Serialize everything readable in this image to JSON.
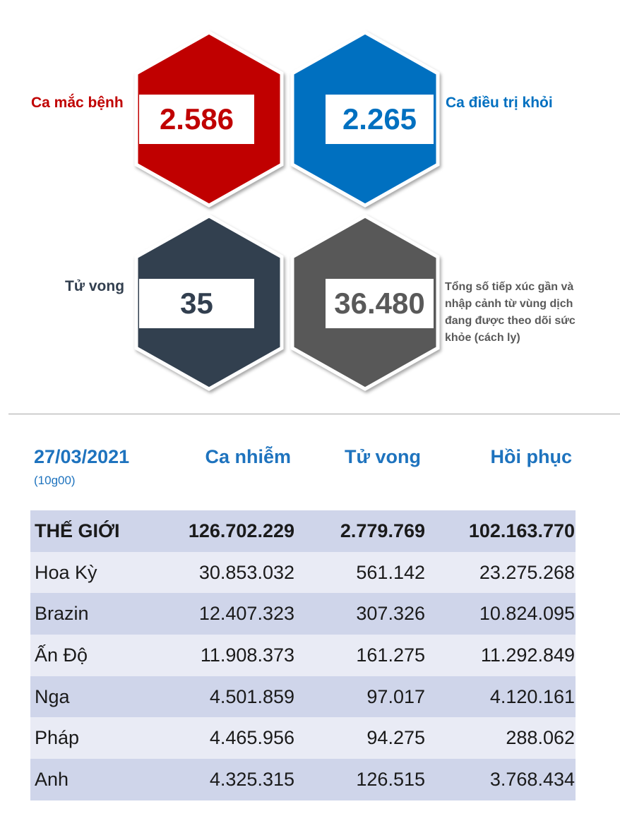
{
  "stats": {
    "cases": {
      "label": "Ca mắc bệnh",
      "value": "2.586",
      "color": "#c00000"
    },
    "recovered": {
      "label": "Ca điều trị khỏi",
      "value": "2.265",
      "color": "#0070c0"
    },
    "deaths": {
      "label": "Tử vong",
      "value": "35",
      "color": "#323f4f"
    },
    "monitored": {
      "value": "36.480",
      "color": "#595959",
      "note": "Tổng số tiếp xúc gần và nhập cảnh từ vùng dịch đang được theo dõi sức khỏe (cách ly)"
    }
  },
  "table": {
    "date": "27/03/2021",
    "time": "(10g00)",
    "columns": [
      "Ca nhiễm",
      "Tử vong",
      "Hồi phục"
    ],
    "rows": [
      {
        "name": "THẾ GIỚI",
        "cases": "126.702.229",
        "deaths": "2.779.769",
        "recovered": "102.163.770"
      },
      {
        "name": "Hoa Kỳ",
        "cases": "30.853.032",
        "deaths": "561.142",
        "recovered": "23.275.268"
      },
      {
        "name": "Brazin",
        "cases": "12.407.323",
        "deaths": "307.326",
        "recovered": "10.824.095"
      },
      {
        "name": "Ấn Độ",
        "cases": "11.908.373",
        "deaths": "161.275",
        "recovered": "11.292.849"
      },
      {
        "name": "Nga",
        "cases": "4.501.859",
        "deaths": "97.017",
        "recovered": "4.120.161"
      },
      {
        "name": "Pháp",
        "cases": "4.465.956",
        "deaths": "94.275",
        "recovered": "288.062"
      },
      {
        "name": "Anh",
        "cases": "4.325.315",
        "deaths": "126.515",
        "recovered": "3.768.434"
      }
    ]
  }
}
